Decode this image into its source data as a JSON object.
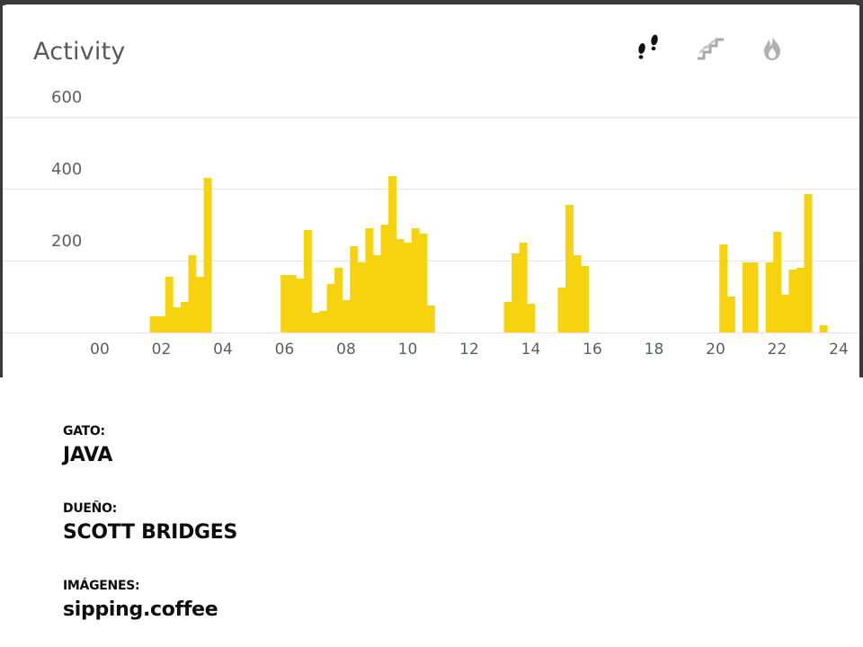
{
  "card": {
    "title": "Activity",
    "tabs": [
      {
        "icon": "footsteps-icon",
        "active": true
      },
      {
        "icon": "stairs-icon",
        "active": false
      },
      {
        "icon": "flame-icon",
        "active": false
      }
    ]
  },
  "colors": {
    "bar": "#f7d20e",
    "grid": "#e6e6e6",
    "axis_text": "#5a5f66",
    "icon_active": "#111111",
    "icon_inactive": "#a8a8a8"
  },
  "chart_data": {
    "type": "bar",
    "title": "",
    "xlabel": "",
    "ylabel": "",
    "x_ticks": [
      "00",
      "02",
      "04",
      "06",
      "08",
      "10",
      "12",
      "14",
      "16",
      "18",
      "20",
      "22",
      "24"
    ],
    "y_ticks": [
      "200",
      "400",
      "600"
    ],
    "ylim": [
      0,
      650
    ],
    "grid": true,
    "bin_hours": 0.25,
    "bars": [
      {
        "x": 1.75,
        "y": 45
      },
      {
        "x": 2.0,
        "y": 45
      },
      {
        "x": 2.25,
        "y": 155
      },
      {
        "x": 2.5,
        "y": 70
      },
      {
        "x": 2.75,
        "y": 85
      },
      {
        "x": 3.0,
        "y": 215
      },
      {
        "x": 3.25,
        "y": 155
      },
      {
        "x": 3.5,
        "y": 430
      },
      {
        "x": 6.0,
        "y": 160
      },
      {
        "x": 6.25,
        "y": 160
      },
      {
        "x": 6.5,
        "y": 150
      },
      {
        "x": 6.75,
        "y": 285
      },
      {
        "x": 7.0,
        "y": 55
      },
      {
        "x": 7.25,
        "y": 60
      },
      {
        "x": 7.5,
        "y": 135
      },
      {
        "x": 7.75,
        "y": 180
      },
      {
        "x": 8.0,
        "y": 90
      },
      {
        "x": 8.25,
        "y": 240
      },
      {
        "x": 8.5,
        "y": 195
      },
      {
        "x": 8.75,
        "y": 290
      },
      {
        "x": 9.0,
        "y": 215
      },
      {
        "x": 9.25,
        "y": 300
      },
      {
        "x": 9.5,
        "y": 435
      },
      {
        "x": 9.75,
        "y": 260
      },
      {
        "x": 10.0,
        "y": 250
      },
      {
        "x": 10.25,
        "y": 290
      },
      {
        "x": 10.5,
        "y": 275
      },
      {
        "x": 10.75,
        "y": 75
      },
      {
        "x": 13.25,
        "y": 85
      },
      {
        "x": 13.5,
        "y": 220
      },
      {
        "x": 13.75,
        "y": 250
      },
      {
        "x": 14.0,
        "y": 80
      },
      {
        "x": 15.0,
        "y": 125
      },
      {
        "x": 15.25,
        "y": 355
      },
      {
        "x": 15.5,
        "y": 215
      },
      {
        "x": 15.75,
        "y": 185
      },
      {
        "x": 20.25,
        "y": 245
      },
      {
        "x": 20.5,
        "y": 100
      },
      {
        "x": 21.0,
        "y": 195
      },
      {
        "x": 21.25,
        "y": 195
      },
      {
        "x": 21.75,
        "y": 195
      },
      {
        "x": 22.0,
        "y": 280
      },
      {
        "x": 22.25,
        "y": 105
      },
      {
        "x": 22.5,
        "y": 175
      },
      {
        "x": 22.75,
        "y": 180
      },
      {
        "x": 23.0,
        "y": 385
      },
      {
        "x": 23.5,
        "y": 20
      }
    ]
  },
  "captions": {
    "cat_label": "GATO:",
    "cat_name": "JAVA",
    "owner_label": "DUEÑO:",
    "owner_name": "SCOTT BRIDGES",
    "images_label": "IMÁGENES:",
    "images_credit": "sipping.coffee"
  }
}
